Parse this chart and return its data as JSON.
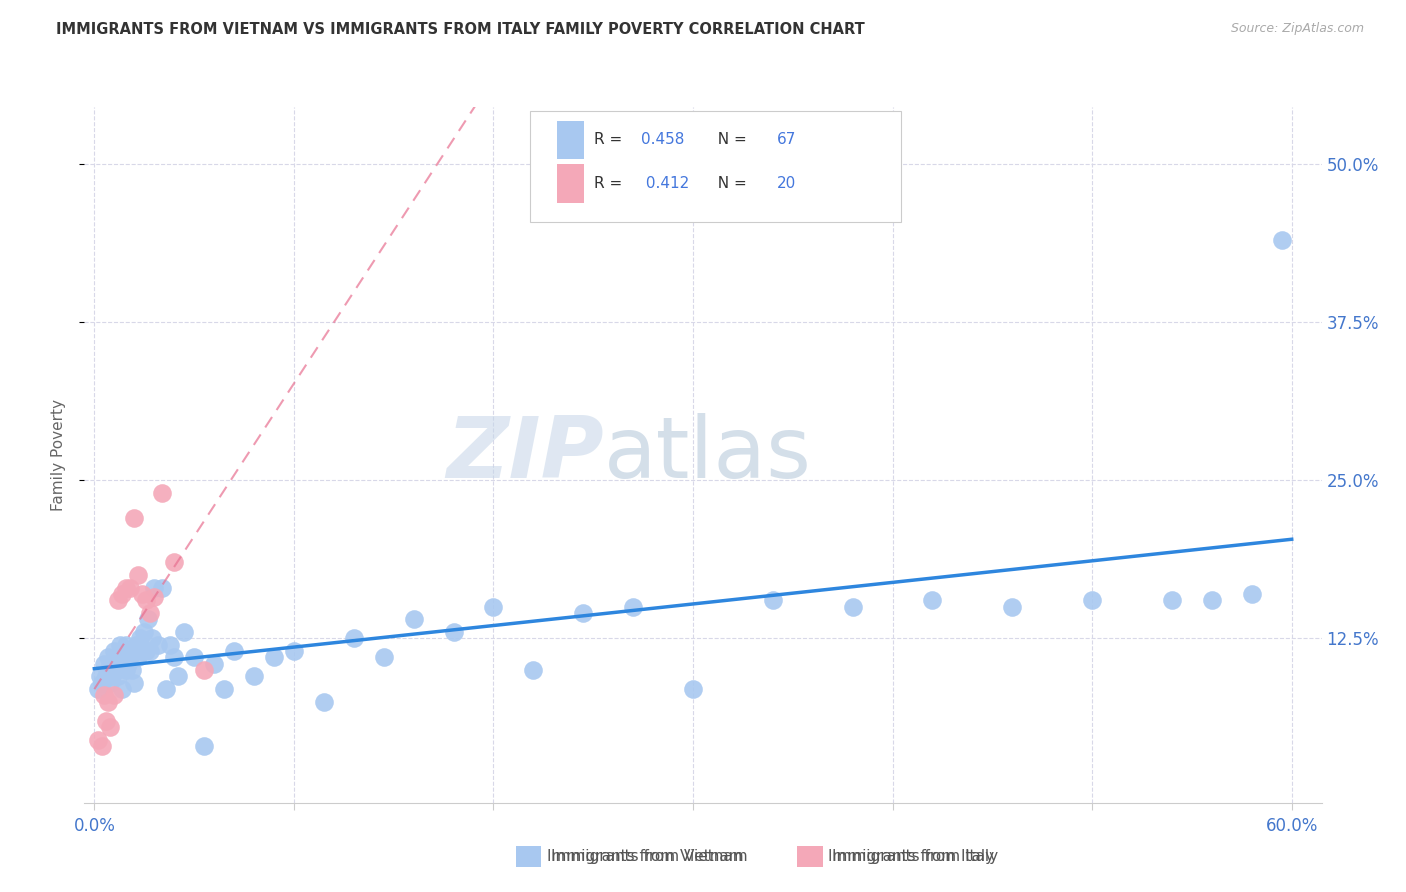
{
  "title": "IMMIGRANTS FROM VIETNAM VS IMMIGRANTS FROM ITALY FAMILY POVERTY CORRELATION CHART",
  "source": "Source: ZipAtlas.com",
  "ylabel": "Family Poverty",
  "ytick_labels": [
    "12.5%",
    "25.0%",
    "37.5%",
    "50.0%"
  ],
  "ytick_values": [
    0.125,
    0.25,
    0.375,
    0.5
  ],
  "xtick_values": [
    0.0,
    0.1,
    0.2,
    0.3,
    0.4,
    0.5,
    0.6
  ],
  "xlim": [
    -0.005,
    0.615
  ],
  "ylim": [
    -0.005,
    0.545
  ],
  "vietnam_R": 0.458,
  "vietnam_N": 67,
  "italy_R": 0.412,
  "italy_N": 20,
  "vietnam_color": "#A8C8F0",
  "italy_color": "#F4A8B8",
  "vietnam_line_color": "#2E86DE",
  "italy_line_color": "#E87090",
  "legend_label_vietnam": "Immigrants from Vietnam",
  "legend_label_italy": "Immigrants from Italy",
  "watermark_zip": "ZIP",
  "watermark_atlas": "atlas",
  "background_color": "#ffffff",
  "grid_color": "#d8d8e8",
  "vietnam_x": [
    0.002,
    0.003,
    0.004,
    0.005,
    0.006,
    0.007,
    0.007,
    0.008,
    0.009,
    0.01,
    0.01,
    0.011,
    0.012,
    0.013,
    0.013,
    0.014,
    0.015,
    0.016,
    0.016,
    0.017,
    0.018,
    0.019,
    0.02,
    0.021,
    0.022,
    0.023,
    0.024,
    0.025,
    0.026,
    0.027,
    0.028,
    0.029,
    0.03,
    0.032,
    0.034,
    0.036,
    0.038,
    0.04,
    0.042,
    0.045,
    0.05,
    0.055,
    0.06,
    0.065,
    0.07,
    0.08,
    0.09,
    0.1,
    0.115,
    0.13,
    0.145,
    0.16,
    0.18,
    0.2,
    0.22,
    0.245,
    0.27,
    0.3,
    0.34,
    0.38,
    0.42,
    0.46,
    0.5,
    0.54,
    0.56,
    0.58,
    0.595
  ],
  "vietnam_y": [
    0.085,
    0.095,
    0.09,
    0.105,
    0.095,
    0.1,
    0.11,
    0.09,
    0.095,
    0.105,
    0.115,
    0.1,
    0.095,
    0.11,
    0.12,
    0.085,
    0.115,
    0.1,
    0.12,
    0.105,
    0.11,
    0.1,
    0.09,
    0.12,
    0.11,
    0.125,
    0.115,
    0.13,
    0.115,
    0.14,
    0.115,
    0.125,
    0.165,
    0.12,
    0.165,
    0.085,
    0.12,
    0.11,
    0.095,
    0.13,
    0.11,
    0.04,
    0.105,
    0.085,
    0.115,
    0.095,
    0.11,
    0.115,
    0.075,
    0.125,
    0.11,
    0.14,
    0.13,
    0.15,
    0.1,
    0.145,
    0.15,
    0.085,
    0.155,
    0.15,
    0.155,
    0.15,
    0.155,
    0.155,
    0.155,
    0.16,
    0.44
  ],
  "italy_x": [
    0.002,
    0.004,
    0.005,
    0.006,
    0.007,
    0.008,
    0.01,
    0.012,
    0.014,
    0.016,
    0.018,
    0.02,
    0.022,
    0.024,
    0.026,
    0.028,
    0.03,
    0.034,
    0.04,
    0.055
  ],
  "italy_y": [
    0.045,
    0.04,
    0.08,
    0.06,
    0.075,
    0.055,
    0.08,
    0.155,
    0.16,
    0.165,
    0.165,
    0.22,
    0.175,
    0.16,
    0.155,
    0.145,
    0.158,
    0.24,
    0.185,
    0.1
  ]
}
